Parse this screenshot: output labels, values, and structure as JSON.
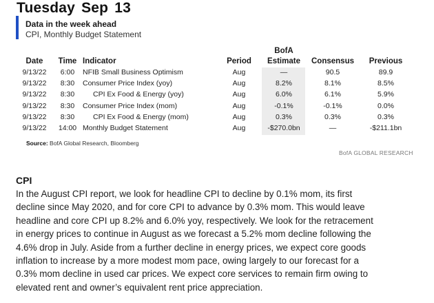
{
  "title": "Tuesday  Sep 13",
  "box": {
    "heading": "Data in the week ahead",
    "subheading": "CPI, Monthly Budget Statement"
  },
  "table": {
    "headers": {
      "date": "Date",
      "time": "Time",
      "indicator": "Indicator",
      "period": "Period",
      "bofa_top": "BofA",
      "bofa_bottom": "Estimate",
      "consensus": "Consensus",
      "previous": "Previous"
    },
    "rows": [
      {
        "date": "9/13/22",
        "time": "6:00",
        "indicator": "NFIB Small Business Optimism",
        "indent": false,
        "period": "Aug",
        "bofa": "—",
        "consensus": "90.5",
        "previous": "89.9"
      },
      {
        "date": "9/13/22",
        "time": "8:30",
        "indicator": "Consumer Price Index (yoy)",
        "indent": false,
        "period": "Aug",
        "bofa": "8.2%",
        "consensus": "8.1%",
        "previous": "8.5%"
      },
      {
        "date": "9/13/22",
        "time": "8:30",
        "indicator": "CPI Ex Food & Energy (yoy)",
        "indent": true,
        "period": "Aug",
        "bofa": "6.0%",
        "consensus": "6.1%",
        "previous": "5.9%"
      },
      {
        "date": "9/13/22",
        "time": "8:30",
        "indicator": "Consumer Price Index (mom)",
        "indent": false,
        "period": "Aug",
        "bofa": "-0.1%",
        "consensus": "-0.1%",
        "previous": "0.0%"
      },
      {
        "date": "9/13/22",
        "time": "8:30",
        "indicator": "CPI Ex Food & Energy (mom)",
        "indent": true,
        "period": "Aug",
        "bofa": "0.3%",
        "consensus": "0.3%",
        "previous": "0.3%"
      },
      {
        "date": "9/13/22",
        "time": "14:00",
        "indicator": "Monthly Budget Statement",
        "indent": false,
        "period": "Aug",
        "bofa": "-$270.0bn",
        "consensus": "—",
        "previous": "-$211.1bn"
      }
    ]
  },
  "source": {
    "label": "Source:",
    "text": "BofA Global Research, Bloomberg"
  },
  "credit": "BofA GLOBAL RESEARCH",
  "section": {
    "heading": "CPI",
    "lines": [
      "In the August CPI report, we look for headline CPI to decline by 0.1% mom, its first",
      "decline since May 2020, and for core CPI to advance by 0.3% mom. This would leave",
      "headline and core CPI up 8.2% and 6.0% yoy, respectively. We look for the retracement",
      "in energy prices to continue in August as we forecast a 5.2% mom decline following the",
      "4.6% drop in July. Aside from a further decline in energy prices, we expect core goods",
      "inflation to increase by a more modest mom pace, owing largely to our forecast for a",
      "0.3% mom decline in used car prices. We expect core services to remain firm owing to",
      "elevated rent and owner’s equivalent rent price appreciation."
    ]
  }
}
